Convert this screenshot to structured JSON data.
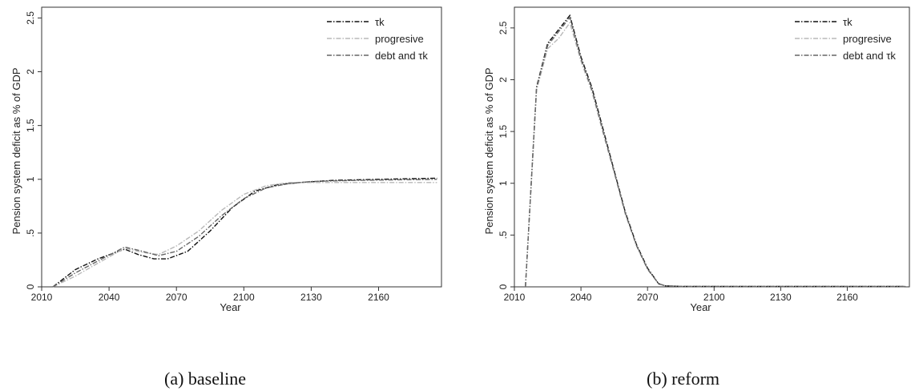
{
  "chart_data": [
    {
      "type": "line",
      "caption": "(a) baseline",
      "xlabel": "Year",
      "ylabel": "Pension system deficit as % of GDP",
      "xticks": [
        "2010",
        "2040",
        "2070",
        "2100",
        "2130",
        "2160"
      ],
      "yticks": [
        "0",
        ".5",
        "1",
        "1.5",
        "2",
        "2.5"
      ],
      "xlim": [
        2010,
        2188
      ],
      "ylim": [
        0,
        2.6
      ],
      "grid": false,
      "legend_position": "top-right",
      "series": [
        {
          "name": "τk",
          "style": "dash-dot",
          "color": "#111111",
          "x": [
            2015,
            2025,
            2035,
            2047,
            2053,
            2060,
            2066,
            2075,
            2085,
            2095,
            2105,
            2115,
            2125,
            2140,
            2160,
            2186
          ],
          "y": [
            0.0,
            0.16,
            0.26,
            0.35,
            0.3,
            0.26,
            0.26,
            0.33,
            0.52,
            0.74,
            0.89,
            0.95,
            0.97,
            0.99,
            1.0,
            1.01
          ]
        },
        {
          "name": "progresive",
          "style": "dash-dot",
          "color": "#b8b8b8",
          "x": [
            2015,
            2025,
            2035,
            2047,
            2055,
            2062,
            2070,
            2080,
            2090,
            2100,
            2110,
            2120,
            2130,
            2150,
            2186
          ],
          "y": [
            0.0,
            0.1,
            0.22,
            0.36,
            0.32,
            0.3,
            0.38,
            0.52,
            0.71,
            0.86,
            0.94,
            0.97,
            0.97,
            0.97,
            0.97
          ]
        },
        {
          "name": "debt and τk",
          "style": "dash-dot",
          "color": "#666666",
          "x": [
            2015,
            2025,
            2035,
            2047,
            2055,
            2062,
            2070,
            2080,
            2090,
            2100,
            2110,
            2120,
            2130,
            2150,
            2186
          ],
          "y": [
            0.0,
            0.13,
            0.24,
            0.37,
            0.33,
            0.29,
            0.33,
            0.47,
            0.66,
            0.82,
            0.92,
            0.96,
            0.98,
            0.99,
            1.0
          ]
        }
      ]
    },
    {
      "type": "line",
      "caption": "(b) reform",
      "xlabel": "Year",
      "ylabel": "Pension system deficit as % of GDP",
      "xticks": [
        "2010",
        "2040",
        "2070",
        "2100",
        "2130",
        "2160"
      ],
      "yticks": [
        "0",
        ".5",
        "1",
        "1.5",
        "2",
        "2.5"
      ],
      "xlim": [
        2010,
        2188
      ],
      "ylim": [
        0,
        2.7
      ],
      "grid": false,
      "legend_position": "top-right",
      "series": [
        {
          "name": "τk",
          "style": "dash-dot",
          "color": "#111111",
          "x": [
            2015,
            2020,
            2025,
            2035,
            2040,
            2045,
            2050,
            2055,
            2060,
            2065,
            2070,
            2075,
            2078,
            2085,
            2186
          ],
          "y": [
            0.0,
            1.93,
            2.35,
            2.62,
            2.22,
            1.92,
            1.52,
            1.12,
            0.72,
            0.41,
            0.18,
            0.03,
            0.01,
            0.005,
            0.005
          ]
        },
        {
          "name": "progresive",
          "style": "dash-dot",
          "color": "#b8b8b8",
          "x": [
            2015,
            2020,
            2025,
            2030,
            2035,
            2040,
            2045,
            2050,
            2055,
            2060,
            2065,
            2070,
            2075,
            2078,
            2085,
            2186
          ],
          "y": [
            0.0,
            1.9,
            2.3,
            2.4,
            2.55,
            2.18,
            1.88,
            1.48,
            1.1,
            0.7,
            0.4,
            0.17,
            0.03,
            0.01,
            0.005,
            0.005
          ]
        },
        {
          "name": "debt and τk",
          "style": "dash-dot",
          "color": "#666666",
          "x": [
            2015,
            2020,
            2025,
            2035,
            2040,
            2045,
            2050,
            2055,
            2060,
            2065,
            2070,
            2075,
            2078,
            2085,
            2186
          ],
          "y": [
            0.0,
            1.92,
            2.33,
            2.6,
            2.2,
            1.9,
            1.5,
            1.11,
            0.71,
            0.4,
            0.17,
            0.03,
            0.01,
            0.005,
            0.005
          ]
        }
      ]
    }
  ]
}
